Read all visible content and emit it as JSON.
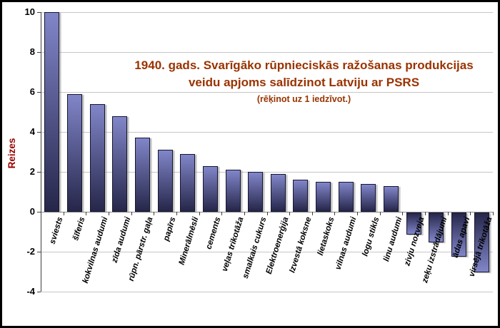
{
  "chart_data": {
    "type": "bar",
    "title_line1": "1940. gads. Svarīgāko rūpnieciskās ražošanas produkcijas",
    "title_line2": "veidu apjoms salīdzinot Latviju ar PSRS",
    "subtitle": "(rēķinot uz 1 iedzīvot.)",
    "ylabel": "Reizes",
    "ylim": [
      -4,
      10
    ],
    "yticks": [
      10,
      8,
      6,
      4,
      2,
      0,
      -2,
      -4
    ],
    "grid": true,
    "legend": false,
    "categories": [
      "sviests",
      "šīferis",
      "kokvilnas audumi",
      "zīda audumi",
      "rūpn. pārstr. gaļa",
      "papīrs",
      "Minerālmēsli",
      "cements",
      "veļas trikotāža",
      "smalkais cukurs",
      "Elektroenerģija",
      "Izvestā koksne",
      "lietaskoks",
      "vilnas audumi",
      "logu stikls",
      "linu audumi",
      "zivju nozveja",
      "zeķu izstrādājumi",
      "ādas apavi",
      "virsējā trikotāža"
    ],
    "values": [
      10,
      5.9,
      5.4,
      4.8,
      3.7,
      3.1,
      2.9,
      2.3,
      2.1,
      2.0,
      1.9,
      1.6,
      1.5,
      1.5,
      1.4,
      1.3,
      -1.1,
      -1.5,
      -2.2,
      -3.0
    ],
    "colors": {
      "title": "#993300",
      "ylabel": "#990000",
      "bar_light": "#8186c9",
      "bar_dark": "#26264a",
      "bar_border": "#16162e",
      "gridline": "#c6c6c6",
      "zero_axis": "#8a8a8a",
      "tick_label": "#000000"
    }
  }
}
